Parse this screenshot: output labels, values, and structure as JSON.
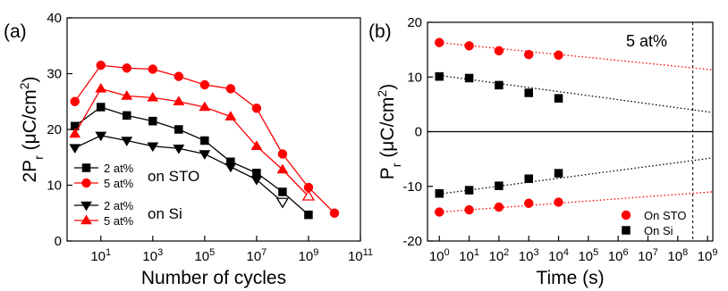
{
  "chart_data": [
    {
      "type": "line",
      "panel_label": "(a)",
      "xlabel": "Number of cycles",
      "ylabel": [
        {
          "text": "2P"
        },
        {
          "text": "r",
          "sub": true
        },
        {
          "text": " (μC/cm"
        },
        {
          "text": "2",
          "sup": true
        },
        {
          "text": ")"
        }
      ],
      "xscale": "log",
      "xlim": [
        0.5,
        100000000000
      ],
      "ylim": [
        0,
        40
      ],
      "xticks": [
        {
          "value": 10,
          "label": "10",
          "label_sup": "1"
        },
        {
          "value": 1000,
          "label": "10",
          "label_sup": "3"
        },
        {
          "value": 100000,
          "label": "10",
          "label_sup": "5"
        },
        {
          "value": 10000000,
          "label": "10",
          "label_sup": "7"
        },
        {
          "value": 1000000000,
          "label": "10",
          "label_sup": "9"
        },
        {
          "value": 100000000000,
          "label": "10",
          "label_sup": "11"
        }
      ],
      "yticks": [
        0,
        10,
        20,
        30,
        40
      ],
      "legend_groups": [
        "on STO",
        "on Si"
      ],
      "series": [
        {
          "name": "2 at%",
          "group": 0,
          "color": "#000000",
          "marker": "square",
          "x": [
            1,
            10,
            100,
            1000,
            10000,
            100000,
            1000000,
            10000000,
            100000000,
            1000000000
          ],
          "values": [
            20.6,
            24,
            22.5,
            21.5,
            20,
            18,
            14.2,
            12.2,
            8.8,
            4.7
          ]
        },
        {
          "name": "5 at%",
          "group": 0,
          "color": "#ff0000",
          "marker": "circle",
          "x": [
            1,
            10,
            100,
            1000,
            10000,
            100000,
            1000000,
            10000000,
            100000000,
            1000000000,
            10000000000
          ],
          "values": [
            25,
            31.5,
            31,
            30.8,
            29.5,
            28,
            27.3,
            23.8,
            15.6,
            9.6,
            5
          ]
        },
        {
          "name": "2 at%",
          "group": 1,
          "color": "#000000",
          "marker": "triangle-down",
          "open_points": [
            8
          ],
          "x": [
            1,
            10,
            100,
            1000,
            10000,
            100000,
            1000000,
            10000000,
            100000000
          ],
          "values": [
            16.7,
            18.9,
            18,
            17,
            16.6,
            15.6,
            13.3,
            11,
            7
          ]
        },
        {
          "name": "5 at%",
          "group": 1,
          "color": "#ff0000",
          "marker": "triangle-up",
          "open_points": [
            9
          ],
          "x": [
            1,
            10,
            100,
            1000,
            10000,
            100000,
            1000000,
            10000000,
            100000000,
            1000000000
          ],
          "values": [
            19.2,
            27.3,
            26,
            25.7,
            25,
            24,
            22.3,
            17,
            12.8,
            8
          ]
        }
      ]
    },
    {
      "type": "scatter",
      "panel_label": "(b)",
      "xlabel": "Time (s)",
      "ylabel": [
        {
          "text": "P"
        },
        {
          "text": "r",
          "sub": true
        },
        {
          "text": " (μC/cm"
        },
        {
          "text": "2",
          "sup": true
        },
        {
          "text": ")"
        }
      ],
      "annotation": "5 at%",
      "xscale": "log",
      "xlim": [
        0.4,
        1500000000
      ],
      "ylim": [
        -20,
        20
      ],
      "xticks": [
        {
          "value": 1,
          "label": "10",
          "label_sup": "0"
        },
        {
          "value": 10,
          "label": "10",
          "label_sup": "1"
        },
        {
          "value": 100,
          "label": "10",
          "label_sup": "2"
        },
        {
          "value": 1000,
          "label": "10",
          "label_sup": "3"
        },
        {
          "value": 10000,
          "label": "10",
          "label_sup": "4"
        },
        {
          "value": 100000,
          "label": "10",
          "label_sup": "5"
        },
        {
          "value": 1000000,
          "label": "10",
          "label_sup": "6"
        },
        {
          "value": 10000000,
          "label": "10",
          "label_sup": "7"
        },
        {
          "value": 100000000,
          "label": "10",
          "label_sup": "8"
        },
        {
          "value": 1000000000,
          "label": "10",
          "label_sup": "9"
        }
      ],
      "yticks": [
        -20,
        -10,
        0,
        10,
        20
      ],
      "zero_line": 0,
      "vline": 320000000,
      "series": [
        {
          "name": "On STO",
          "color": "#ff0000",
          "marker": "circle",
          "branches": [
            {
              "x": [
                1,
                10,
                100,
                1000,
                10000
              ],
              "values": [
                16.3,
                15.7,
                14.8,
                14.1,
                14.0
              ],
              "fit_x": [
                1,
                1500000000
              ],
              "fit_values": [
                16.3,
                11.3
              ]
            },
            {
              "x": [
                1,
                10,
                100,
                1000,
                10000
              ],
              "values": [
                -14.7,
                -14.3,
                -13.8,
                -13.1,
                -12.9
              ],
              "fit_x": [
                1,
                1500000000
              ],
              "fit_values": [
                -14.7,
                -11
              ]
            }
          ]
        },
        {
          "name": "On Si",
          "color": "#000000",
          "marker": "square",
          "branches": [
            {
              "x": [
                1,
                10,
                100,
                1000,
                10000
              ],
              "values": [
                10.1,
                9.8,
                8.5,
                7.1,
                6.1
              ],
              "fit_x": [
                1,
                1500000000
              ],
              "fit_values": [
                10.3,
                3.5
              ]
            },
            {
              "x": [
                1,
                10,
                100,
                1000,
                10000
              ],
              "values": [
                -11.3,
                -10.7,
                -9.9,
                -8.6,
                -7.6
              ],
              "fit_x": [
                1,
                1500000000
              ],
              "fit_values": [
                -11.4,
                -4.8
              ]
            }
          ]
        }
      ]
    }
  ]
}
